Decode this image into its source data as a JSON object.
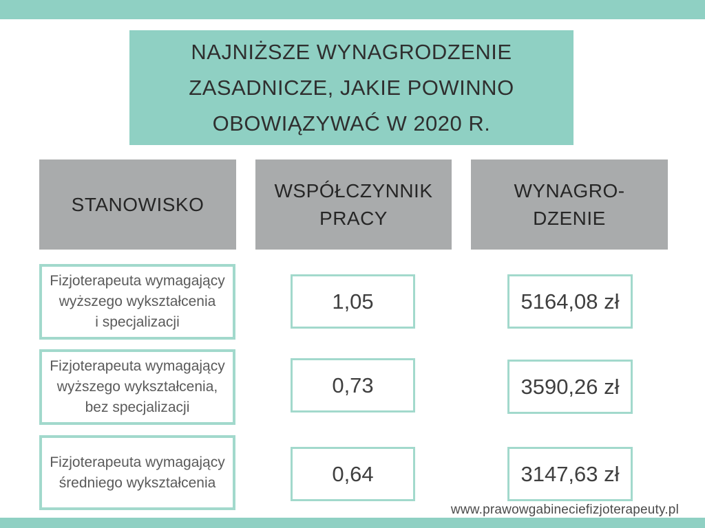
{
  "page": {
    "background": "#ffffff",
    "accent_teal": "#8FD0C3",
    "box_border_teal": "#A2D9CC",
    "header_gray": "#A9ABAC",
    "footer_url": "www.prawowgabineciefizjoterapeuty.pl"
  },
  "title": {
    "full": "NAJNIŻSZE WYNAGRODZENIE ZASADNICZE, JAKIE POWINNO OBOWIĄZYWAĆ W 2020 R.",
    "lines": [
      "NAJNIŻSZE WYNAGRODZENIE",
      "ZASADNICZE, JAKIE POWINNO",
      "OBOWIĄZYWAĆ W 2020 R."
    ]
  },
  "table": {
    "headers": {
      "stanowisko": {
        "lines": [
          "STANOWISKO"
        ]
      },
      "wspolczynnik": {
        "lines": [
          "WSPÓŁCZYNNIK",
          "PRACY"
        ]
      },
      "wynagrodzenie": {
        "lines": [
          "WYNAGRO-",
          "DZENIE"
        ]
      }
    },
    "rows": [
      {
        "position_lines": [
          "Fizjoterapeuta wymagający",
          "wyższego wykształcenia",
          "i specjalizacji"
        ],
        "coefficient": "1,05",
        "salary": "5164,08 zł"
      },
      {
        "position_lines": [
          "Fizjoterapeuta wymagający",
          "wyższego wykształcenia,",
          "bez specjalizacji"
        ],
        "coefficient": "0,73",
        "salary": "3590,26 zł"
      },
      {
        "position_lines": [
          "Fizjoterapeuta wymagający",
          "średniego wykształcenia"
        ],
        "coefficient": "0,64",
        "salary": "3147,63 zł"
      }
    ]
  },
  "chart_data": {
    "type": "table",
    "title": "NAJNIŻSZE WYNAGRODZENIE ZASADNICZE, JAKIE POWINNO OBOWIĄZYWAĆ W 2020 R.",
    "columns": [
      "STANOWISKO",
      "WSPÓŁCZYNNIK PRACY",
      "WYNAGRODZENIE"
    ],
    "rows": [
      [
        "Fizjoterapeuta wymagający wyższego wykształcenia i specjalizacji",
        "1,05",
        "5164,08 zł"
      ],
      [
        "Fizjoterapeuta wymagający wyższego wykształcenia, bez specjalizacji",
        "0,73",
        "3590,26 zł"
      ],
      [
        "Fizjoterapeuta wymagający średniego wykształcenia",
        "0,64",
        "3147,63 zł"
      ]
    ],
    "coefficients_numeric": [
      1.05,
      0.73,
      0.64
    ],
    "salaries_numeric_pln": [
      5164.08,
      3590.26,
      3147.63
    ],
    "source_caption": "www.prawowgabineciefizjoterapeuty.pl",
    "legend_position": "none",
    "grid": false
  }
}
